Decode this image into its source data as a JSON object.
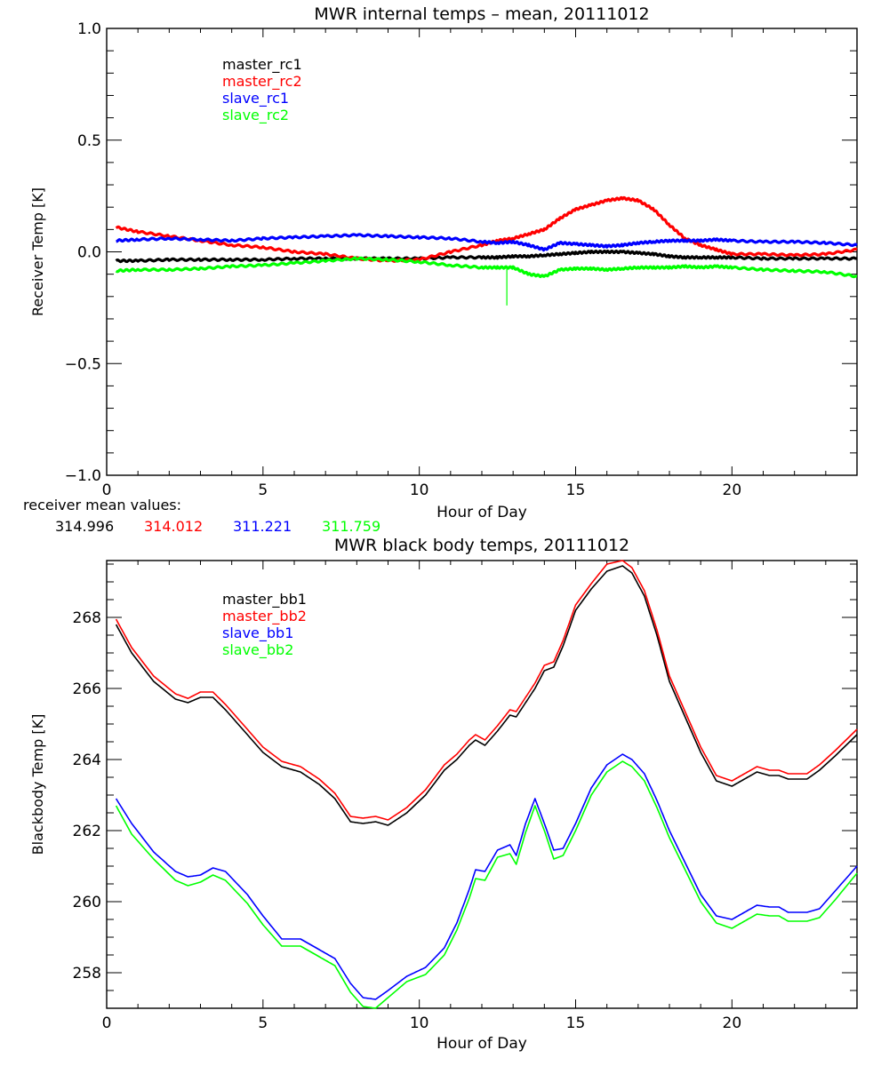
{
  "chart_data": [
    {
      "type": "line",
      "title": "MWR internal temps – mean, 20111012",
      "xlabel": "Hour of Day",
      "ylabel": "Receiver Temp [K]",
      "xlim": [
        0,
        24
      ],
      "ylim": [
        -1.0,
        1.0
      ],
      "x_ticks": [
        0,
        5,
        10,
        15,
        20
      ],
      "y_ticks": [
        -1.0,
        -0.5,
        0.0,
        0.5,
        1.0
      ],
      "y_tick_labels": [
        "−1.0",
        "−0.5",
        "0.0",
        "0.5",
        "1.0"
      ],
      "grid": false,
      "legend_position": "top-left",
      "x": [
        0.3,
        1,
        2,
        3,
        4,
        5,
        6,
        7,
        8,
        9,
        10,
        11,
        12,
        12.5,
        13,
        13.5,
        14,
        14.5,
        15,
        15.5,
        16,
        16.5,
        17,
        17.5,
        18,
        18.5,
        19,
        19.5,
        20,
        21,
        22,
        23,
        24
      ],
      "series": [
        {
          "name": "master_rc1",
          "color": "#000000",
          "values": [
            -0.04,
            -0.04,
            -0.035,
            -0.035,
            -0.035,
            -0.035,
            -0.03,
            -0.03,
            -0.03,
            -0.03,
            -0.03,
            -0.025,
            -0.025,
            -0.025,
            -0.02,
            -0.02,
            -0.015,
            -0.01,
            -0.005,
            0.0,
            0.0,
            0.0,
            -0.005,
            -0.01,
            -0.02,
            -0.025,
            -0.025,
            -0.025,
            -0.025,
            -0.03,
            -0.03,
            -0.03,
            -0.03
          ]
        },
        {
          "name": "master_rc2",
          "color": "#ff0000",
          "values": [
            0.11,
            0.09,
            0.07,
            0.05,
            0.03,
            0.02,
            0.0,
            -0.01,
            -0.03,
            -0.04,
            -0.035,
            0.0,
            0.03,
            0.05,
            0.06,
            0.08,
            0.1,
            0.15,
            0.19,
            0.21,
            0.23,
            0.24,
            0.23,
            0.19,
            0.12,
            0.06,
            0.03,
            0.01,
            -0.01,
            -0.01,
            -0.015,
            -0.01,
            0.01
          ]
        },
        {
          "name": "slave_rc1",
          "color": "#0000ff",
          "values": [
            0.05,
            0.055,
            0.06,
            0.055,
            0.05,
            0.06,
            0.065,
            0.07,
            0.075,
            0.07,
            0.065,
            0.06,
            0.045,
            0.04,
            0.045,
            0.03,
            0.01,
            0.04,
            0.035,
            0.03,
            0.025,
            0.03,
            0.04,
            0.045,
            0.05,
            0.05,
            0.05,
            0.055,
            0.05,
            0.045,
            0.045,
            0.04,
            0.03
          ]
        },
        {
          "name": "slave_rc2",
          "color": "#00ff00",
          "values": [
            -0.085,
            -0.08,
            -0.08,
            -0.075,
            -0.065,
            -0.06,
            -0.05,
            -0.04,
            -0.03,
            -0.035,
            -0.045,
            -0.06,
            -0.07,
            -0.07,
            -0.07,
            -0.1,
            -0.11,
            -0.08,
            -0.075,
            -0.075,
            -0.08,
            -0.075,
            -0.07,
            -0.07,
            -0.07,
            -0.065,
            -0.07,
            -0.065,
            -0.07,
            -0.08,
            -0.085,
            -0.09,
            -0.11
          ]
        }
      ],
      "spikes": [
        {
          "series": "slave_rc2",
          "x": 12.8,
          "value": -0.24
        }
      ],
      "annotation": {
        "label": "receiver mean values:",
        "values": [
          {
            "text": "314.996",
            "color": "#000000"
          },
          {
            "text": "314.012",
            "color": "#ff0000"
          },
          {
            "text": "311.221",
            "color": "#0000ff"
          },
          {
            "text": "311.759",
            "color": "#00ff00"
          }
        ]
      }
    },
    {
      "type": "line",
      "title": "MWR black body temps, 20111012",
      "xlabel": "Hour of Day",
      "ylabel": "Blackbody Temp [K]",
      "xlim": [
        0,
        24
      ],
      "ylim": [
        257.0,
        269.6
      ],
      "x_ticks": [
        0,
        5,
        10,
        15,
        20
      ],
      "y_ticks": [
        258,
        260,
        262,
        264,
        266,
        268
      ],
      "y_tick_labels": [
        "258",
        "260",
        "262",
        "264",
        "266",
        "268"
      ],
      "grid": false,
      "legend_position": "top-left",
      "x": [
        0.3,
        0.8,
        1.5,
        2.2,
        2.6,
        3.0,
        3.4,
        3.8,
        4.5,
        5.0,
        5.6,
        6.2,
        6.8,
        7.3,
        7.8,
        8.2,
        8.6,
        9.0,
        9.6,
        10.2,
        10.8,
        11.2,
        11.6,
        11.8,
        12.1,
        12.5,
        12.9,
        13.1,
        13.4,
        13.7,
        14.0,
        14.3,
        14.6,
        15.0,
        15.5,
        16.0,
        16.5,
        16.8,
        17.2,
        17.6,
        18.0,
        18.5,
        19.0,
        19.5,
        20.0,
        20.5,
        20.8,
        21.2,
        21.5,
        21.8,
        22.4,
        22.8,
        23.3,
        24.0
      ],
      "series": [
        {
          "name": "master_bb1",
          "color": "#000000",
          "values": [
            267.8,
            267.0,
            266.2,
            265.7,
            265.6,
            265.75,
            265.75,
            265.4,
            264.7,
            264.2,
            263.8,
            263.65,
            263.3,
            262.9,
            262.25,
            262.2,
            262.25,
            262.15,
            262.5,
            263.0,
            263.7,
            264.0,
            264.4,
            264.55,
            264.4,
            264.8,
            265.25,
            265.2,
            265.6,
            266.0,
            266.5,
            266.6,
            267.2,
            268.2,
            268.8,
            269.3,
            269.45,
            269.25,
            268.6,
            267.5,
            266.2,
            265.2,
            264.2,
            263.4,
            263.25,
            263.5,
            263.65,
            263.55,
            263.55,
            263.45,
            263.45,
            263.7,
            264.1,
            264.7
          ]
        },
        {
          "name": "master_bb2",
          "color": "#ff0000",
          "values": [
            267.95,
            267.15,
            266.35,
            265.85,
            265.72,
            265.9,
            265.9,
            265.55,
            264.85,
            264.35,
            263.95,
            263.8,
            263.45,
            263.05,
            262.4,
            262.35,
            262.4,
            262.3,
            262.65,
            263.15,
            263.85,
            264.15,
            264.55,
            264.7,
            264.55,
            264.95,
            265.4,
            265.35,
            265.75,
            266.15,
            266.65,
            266.75,
            267.35,
            268.35,
            268.95,
            269.5,
            269.6,
            269.4,
            268.75,
            267.65,
            266.35,
            265.35,
            264.35,
            263.55,
            263.4,
            263.65,
            263.8,
            263.7,
            263.7,
            263.6,
            263.6,
            263.85,
            264.25,
            264.85
          ]
        },
        {
          "name": "slave_bb1",
          "color": "#0000ff",
          "values": [
            262.9,
            262.2,
            261.4,
            260.85,
            260.7,
            260.75,
            260.95,
            260.85,
            260.2,
            259.6,
            258.95,
            258.95,
            258.65,
            258.4,
            257.7,
            257.3,
            257.25,
            257.5,
            257.9,
            258.15,
            258.7,
            259.4,
            260.35,
            260.9,
            260.85,
            261.45,
            261.6,
            261.3,
            262.2,
            262.9,
            262.2,
            261.45,
            261.5,
            262.2,
            263.2,
            263.85,
            264.15,
            264.0,
            263.6,
            262.85,
            262.0,
            261.1,
            260.2,
            259.6,
            259.5,
            259.75,
            259.9,
            259.85,
            259.85,
            259.7,
            259.7,
            259.8,
            260.3,
            261.0
          ]
        },
        {
          "name": "slave_bb2",
          "color": "#00ff00",
          "values": [
            262.7,
            261.9,
            261.2,
            260.6,
            260.45,
            260.55,
            260.75,
            260.6,
            259.95,
            259.35,
            258.75,
            258.75,
            258.45,
            258.2,
            257.45,
            257.05,
            257.0,
            257.3,
            257.75,
            257.95,
            258.5,
            259.2,
            260.1,
            260.65,
            260.6,
            261.25,
            261.35,
            261.05,
            261.95,
            262.7,
            262.0,
            261.2,
            261.3,
            262.0,
            263.0,
            263.65,
            263.95,
            263.8,
            263.4,
            262.65,
            261.8,
            260.9,
            260.0,
            259.4,
            259.25,
            259.5,
            259.65,
            259.6,
            259.6,
            259.45,
            259.45,
            259.55,
            260.05,
            260.8
          ]
        }
      ]
    }
  ]
}
